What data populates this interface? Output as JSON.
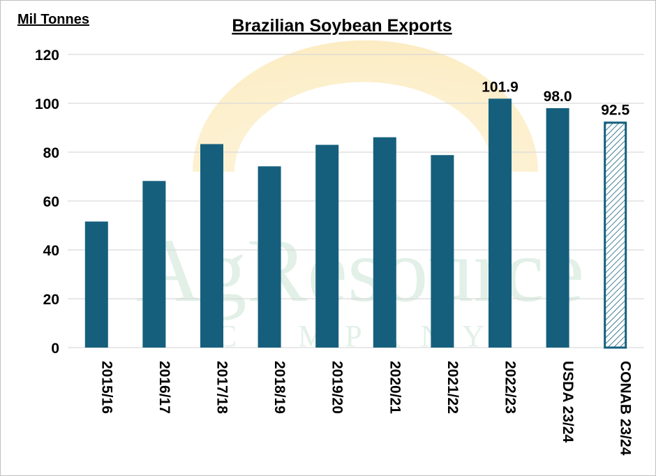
{
  "chart_data": {
    "type": "bar",
    "title": "Brazilian Soybean Exports",
    "ylabel": "Mil Tonnes",
    "xlabel": "",
    "categories": [
      "2015/16",
      "2016/17",
      "2017/18",
      "2018/19",
      "2019/20",
      "2020/21",
      "2021/22",
      "2022/23",
      "USDA 23/24",
      "CONAB 23/24"
    ],
    "values": [
      51.6,
      68.2,
      83.3,
      74.2,
      83.0,
      86.1,
      78.8,
      101.9,
      98.0,
      92.5
    ],
    "data_labels": [
      "",
      "",
      "",
      "",
      "",
      "",
      "",
      "101.9",
      "98.0",
      "92.5"
    ],
    "hatched": [
      false,
      false,
      false,
      false,
      false,
      false,
      false,
      false,
      false,
      true
    ],
    "ylim": [
      0,
      120
    ],
    "yticks": [
      0,
      20,
      40,
      60,
      80,
      100,
      120
    ],
    "grid": true,
    "legend": "none",
    "colors": {
      "bar": "#155f7d",
      "hatch": "#155f7d",
      "grid": "#d9d9d9"
    }
  },
  "watermark": {
    "name": "AgResource",
    "sub": "COMPANY"
  }
}
